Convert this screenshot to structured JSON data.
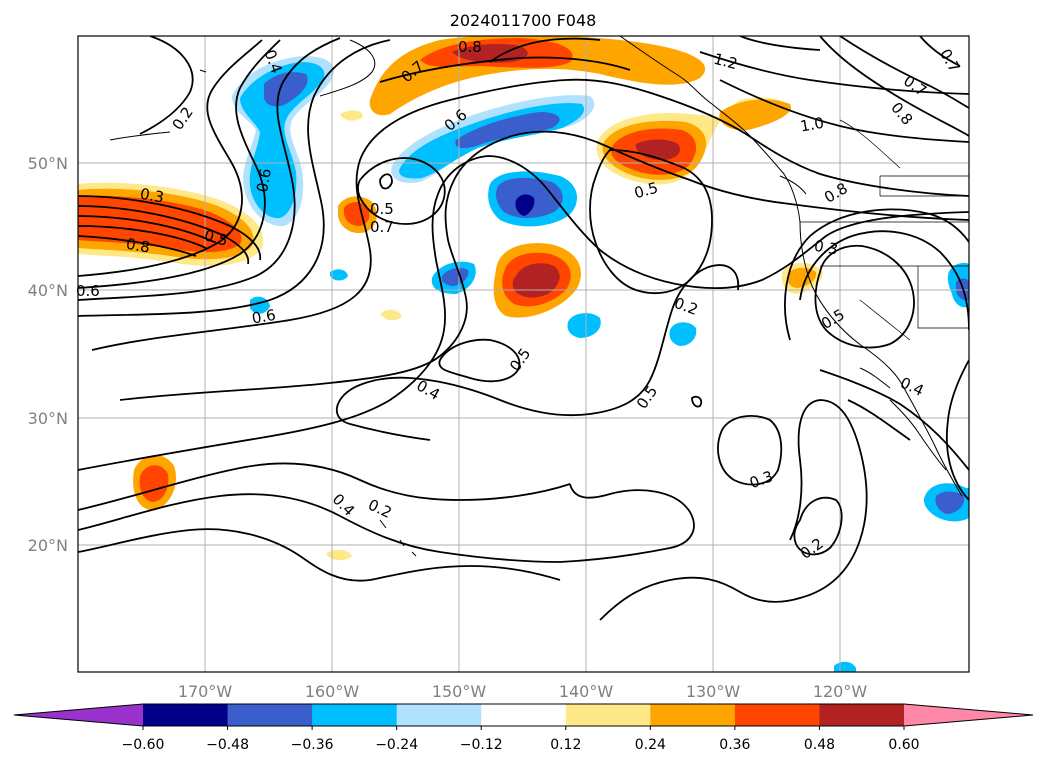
{
  "title": "2024011700 F048",
  "map": {
    "lat_labels": [
      "50°N",
      "40°N",
      "30°N",
      "20°N"
    ],
    "lon_labels": [
      "170°W",
      "160°W",
      "150°W",
      "140°W",
      "130°W",
      "120°W"
    ],
    "contour_labels": [
      "0.4",
      "0.8",
      "0.7",
      "1.2",
      "0.7",
      "0.2",
      "0.6",
      "1.0",
      "0.8",
      "0.6",
      "0.5",
      "0.7",
      "0.3",
      "0.5",
      "0.8",
      "0.8",
      "0.5",
      "0.3",
      "0.7",
      "0.6",
      "0.6",
      "0.2",
      "0.5",
      "0.5",
      "0.4",
      "0.5",
      "0.4",
      "0.3",
      "0.2",
      "0.4",
      "0.2"
    ],
    "grid": true,
    "coastlines": true
  },
  "colorbar": {
    "tick_labels": [
      "−0.60",
      "−0.48",
      "−0.36",
      "−0.24",
      "−0.12",
      "0.12",
      "0.24",
      "0.36",
      "0.48",
      "0.60"
    ],
    "colors": [
      "#9932cc",
      "#00008b",
      "#3a5fcd",
      "#00bfff",
      "#b0e2ff",
      "#ffffff",
      "#ffe888",
      "#ffa500",
      "#ff4500",
      "#b22222",
      "#ff88a8"
    ],
    "extend": "both"
  }
}
